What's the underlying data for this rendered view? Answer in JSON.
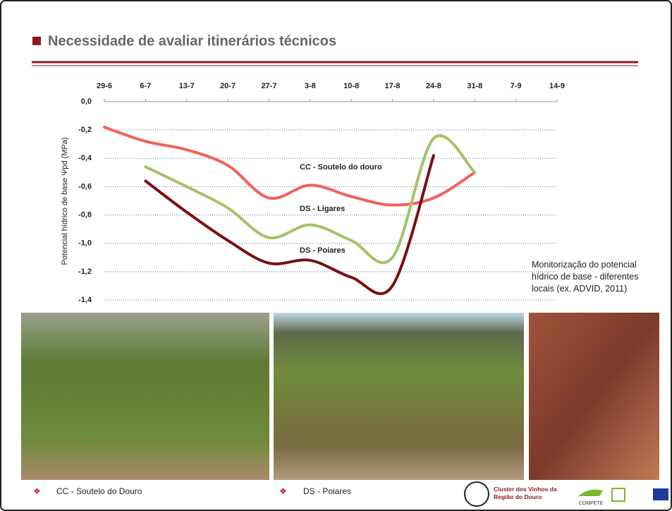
{
  "slide": {
    "title": "Necessidade de avaliar itinerários técnicos",
    "note": "Monitorização do potencial hídrico de base - diferentes locais (ex. ADVID, 2011)",
    "captions": [
      "CC - Soutelo do Douro",
      "DS - Poiares"
    ],
    "logo_text": "Cluster dos Vinhos da Região do Douro",
    "compete": "COMPETE"
  },
  "chart_data": {
    "type": "line",
    "y_label": "Potencial hídrico de base Ψpd (MPa)",
    "categories": [
      "29-6",
      "6-7",
      "13-7",
      "20-7",
      "27-7",
      "3-8",
      "10-8",
      "17-8",
      "24-8",
      "31-8",
      "7-9",
      "14-9"
    ],
    "ylim": [
      0,
      -1.4
    ],
    "yticks": [
      {
        "value": 0,
        "label": "0,0"
      },
      {
        "value": -0.2,
        "label": "-0,2"
      },
      {
        "value": -0.4,
        "label": "-0,4"
      },
      {
        "value": -0.6,
        "label": "-0,6"
      },
      {
        "value": -0.8,
        "label": "-0,8"
      },
      {
        "value": -1.0,
        "label": "-1,0"
      },
      {
        "value": -1.2,
        "label": "-1,2"
      },
      {
        "value": -1.4,
        "label": "-1,4"
      }
    ],
    "grid": true,
    "series": [
      {
        "name": "CC - Soutelo do douro",
        "color": "#f4605a",
        "values": [
          -0.18,
          -0.28,
          -0.34,
          -0.45,
          -0.68,
          -0.59,
          -0.67,
          -0.73,
          -0.68,
          -0.5,
          null,
          null
        ]
      },
      {
        "name": "DS - Ligares",
        "color": "#a4c266",
        "values": [
          null,
          -0.46,
          -0.6,
          -0.75,
          -0.96,
          -0.87,
          -0.98,
          -1.1,
          -0.26,
          -0.5,
          null,
          null
        ]
      },
      {
        "name": "DS - Poiares",
        "color": "#7b1010",
        "values": [
          null,
          -0.56,
          -0.78,
          -0.98,
          -1.14,
          -1.12,
          -1.24,
          -1.3,
          -0.38,
          null,
          null,
          null
        ]
      }
    ]
  }
}
